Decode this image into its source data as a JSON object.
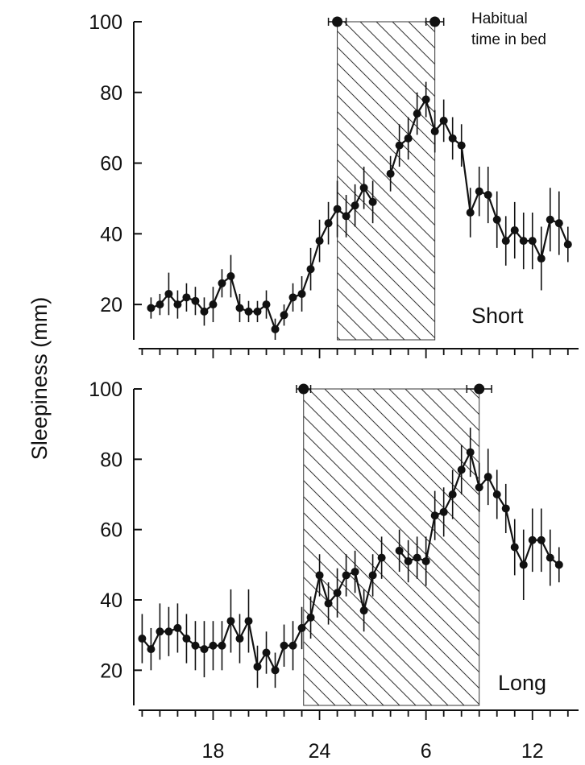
{
  "chart_data": {
    "type": "line",
    "ylabel": "Sleepiness (mm)",
    "annotation": [
      "Habitual",
      "time in bed"
    ],
    "xticks": [
      {
        "hour": 18,
        "label": "18"
      },
      {
        "hour": 24,
        "label": "24"
      },
      {
        "hour": 30,
        "label": "6"
      },
      {
        "hour": 36,
        "label": "12"
      }
    ],
    "xlim": [
      13.8,
      38.6
    ],
    "panels": [
      {
        "label": "Short",
        "ylim": [
          10,
          100
        ],
        "yticks": [
          20,
          40,
          60,
          80,
          100
        ],
        "bed": {
          "start": 25.0,
          "end": 30.5,
          "start_err": 0.5,
          "end_err": 0.5
        },
        "points": [
          [
            14.5,
            19,
            3
          ],
          [
            15.0,
            20,
            3
          ],
          [
            15.5,
            23,
            6
          ],
          [
            16.0,
            20,
            4
          ],
          [
            16.5,
            22,
            4
          ],
          [
            17.0,
            21,
            4
          ],
          [
            17.5,
            18,
            4
          ],
          [
            18.0,
            20,
            5
          ],
          [
            18.5,
            26,
            4
          ],
          [
            19.0,
            28,
            6
          ],
          [
            19.5,
            19,
            4
          ],
          [
            20.0,
            18,
            3
          ],
          [
            20.5,
            18,
            3
          ],
          [
            21.0,
            20,
            4
          ],
          [
            21.5,
            13,
            3
          ],
          [
            22.0,
            17,
            3
          ],
          [
            22.5,
            22,
            4
          ],
          [
            23.0,
            23,
            5
          ],
          [
            23.5,
            30,
            6
          ],
          [
            24.0,
            38,
            6
          ],
          [
            24.5,
            43,
            6
          ],
          [
            25.0,
            47,
            8
          ],
          [
            25.5,
            45,
            6
          ],
          [
            26.0,
            48,
            6
          ],
          [
            26.5,
            53,
            6
          ],
          [
            27.0,
            49,
            6
          ],
          [
            28.0,
            57,
            5
          ],
          [
            28.5,
            65,
            6
          ],
          [
            29.0,
            67,
            6
          ],
          [
            29.5,
            74,
            6
          ],
          [
            30.0,
            78,
            5
          ],
          [
            30.5,
            69,
            6
          ],
          [
            31.0,
            72,
            6
          ],
          [
            31.5,
            67,
            6
          ],
          [
            32.0,
            65,
            6
          ],
          [
            32.5,
            46,
            7
          ],
          [
            33.0,
            52,
            7
          ],
          [
            33.5,
            51,
            8
          ],
          [
            34.0,
            44,
            8
          ],
          [
            34.5,
            38,
            7
          ],
          [
            35.0,
            41,
            8
          ],
          [
            35.5,
            38,
            8
          ],
          [
            36.0,
            38,
            8
          ],
          [
            36.5,
            33,
            9
          ],
          [
            37.0,
            44,
            9
          ],
          [
            37.5,
            43,
            9
          ],
          [
            38.0,
            37,
            5
          ]
        ]
      },
      {
        "label": "Long",
        "ylim": [
          10,
          100
        ],
        "yticks": [
          20,
          40,
          60,
          80,
          100
        ],
        "bed": {
          "start": 23.1,
          "end": 33.0,
          "start_err": 0.4,
          "end_err": 0.7
        },
        "points": [
          [
            14.0,
            29,
            7
          ],
          [
            14.5,
            26,
            6
          ],
          [
            15.0,
            31,
            8
          ],
          [
            15.5,
            31,
            7
          ],
          [
            16.0,
            32,
            7
          ],
          [
            16.5,
            29,
            7
          ],
          [
            17.0,
            27,
            7
          ],
          [
            17.5,
            26,
            8
          ],
          [
            18.0,
            27,
            7
          ],
          [
            18.5,
            27,
            7
          ],
          [
            19.0,
            34,
            9
          ],
          [
            19.5,
            29,
            7
          ],
          [
            20.0,
            34,
            9
          ],
          [
            20.5,
            21,
            6
          ],
          [
            21.0,
            25,
            6
          ],
          [
            21.5,
            20,
            5
          ],
          [
            22.0,
            27,
            6
          ],
          [
            22.5,
            27,
            7
          ],
          [
            23.0,
            32,
            6
          ],
          [
            23.5,
            35,
            6
          ],
          [
            24.0,
            47,
            6
          ],
          [
            24.5,
            39,
            6
          ],
          [
            25.0,
            42,
            7
          ],
          [
            25.5,
            47,
            6
          ],
          [
            26.0,
            48,
            6
          ],
          [
            26.5,
            37,
            6
          ],
          [
            27.0,
            47,
            6
          ],
          [
            27.5,
            52,
            6
          ],
          [
            28.5,
            54,
            6
          ],
          [
            29.0,
            51,
            6
          ],
          [
            29.5,
            52,
            6
          ],
          [
            30.0,
            51,
            7
          ],
          [
            30.5,
            64,
            7
          ],
          [
            31.0,
            65,
            7
          ],
          [
            31.5,
            70,
            7
          ],
          [
            32.0,
            77,
            7
          ],
          [
            32.5,
            82,
            7
          ],
          [
            33.0,
            72,
            7
          ],
          [
            33.5,
            75,
            8
          ],
          [
            34.0,
            70,
            7
          ],
          [
            34.5,
            66,
            7
          ],
          [
            35.0,
            55,
            8
          ],
          [
            35.5,
            50,
            10
          ],
          [
            36.0,
            57,
            9
          ],
          [
            36.5,
            57,
            9
          ],
          [
            37.0,
            52,
            8
          ],
          [
            37.5,
            50,
            5
          ]
        ]
      }
    ]
  }
}
